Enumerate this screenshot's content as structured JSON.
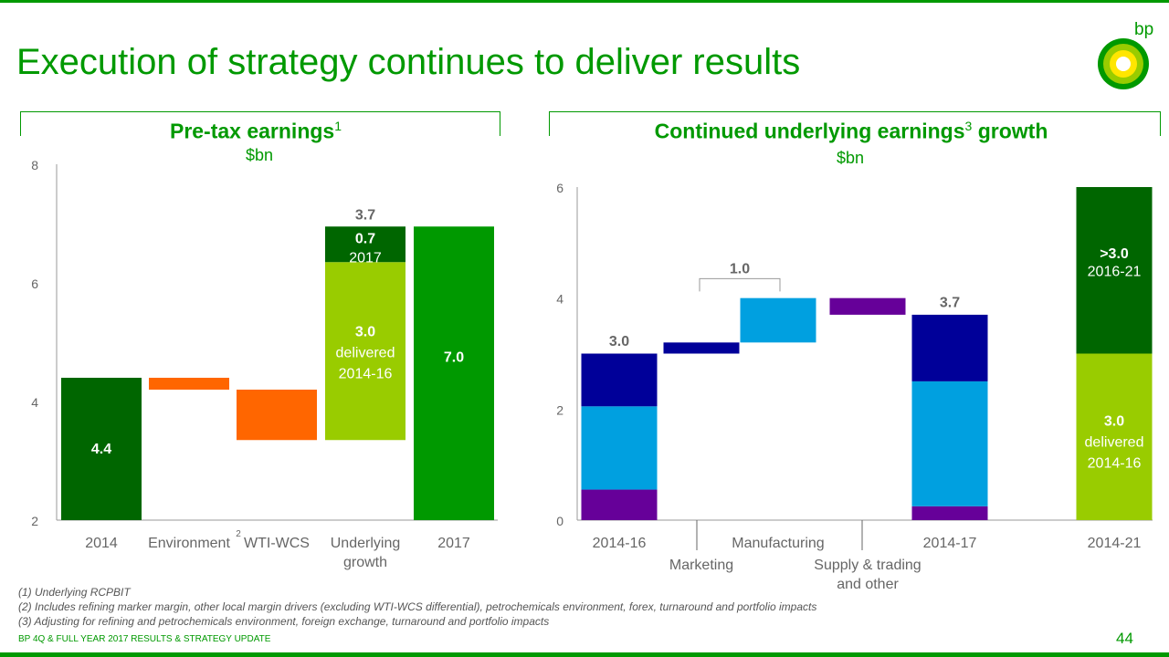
{
  "title": "Execution of strategy continues to deliver results",
  "logo": {
    "text": "bp",
    "icon": "helios-sunflower-icon"
  },
  "colors": {
    "brand_green": "#009900",
    "dark_green": "#006600",
    "light_green": "#99CC00",
    "orange": "#FF6600",
    "dark_blue": "#000099",
    "light_blue": "#00A0E0",
    "purple": "#660099"
  },
  "left_chart": {
    "title": "Pre-tax earnings",
    "title_sup": "1",
    "unit": "$bn"
  },
  "right_chart": {
    "title_a": "Continued underlying earnings",
    "title_sup": "3",
    "title_b": " growth",
    "unit": "$bn"
  },
  "chart_data": [
    {
      "type": "waterfall",
      "title": "Pre-tax earnings",
      "ylabel": "$bn",
      "ylim": [
        2,
        8
      ],
      "yticks": [
        2,
        4,
        6,
        8
      ],
      "categories": [
        "2014",
        "Environment",
        "WTI-WCS",
        "Underlying growth",
        "2017"
      ],
      "category_lines": [
        [
          "2014"
        ],
        [
          "Environment"
        ],
        [
          "WTI-WCS"
        ],
        [
          "Underlying",
          "growth"
        ],
        [
          "2017"
        ]
      ],
      "superscripts": [
        {
          "category": "Environment",
          "text": "2"
        }
      ],
      "segments": [
        {
          "category": "2014",
          "from": 2,
          "to": 4.4,
          "color": "dark_green"
        },
        {
          "category": "Environment",
          "from": 4.4,
          "to": 4.2,
          "color": "orange"
        },
        {
          "category": "WTI-WCS",
          "from": 4.2,
          "to": 3.35,
          "color": "orange"
        },
        {
          "category": "Underlying growth",
          "from": 3.35,
          "to": 6.35,
          "color": "light_green"
        },
        {
          "category": "Underlying growth",
          "from": 6.35,
          "to": 6.95,
          "color": "dark_green"
        },
        {
          "category": "2017",
          "from": 2,
          "to": 6.95,
          "color": "brand_green"
        }
      ],
      "labels": [
        {
          "category": "2014",
          "y": 3.2,
          "lines": [
            "4.4"
          ],
          "color": "white",
          "bold": true
        },
        {
          "category": "Underlying growth",
          "y": 7.15,
          "lines": [
            "3.7"
          ],
          "color": "gray",
          "bold": true
        },
        {
          "category": "Underlying growth",
          "y": 6.75,
          "lines": [
            "0.7"
          ],
          "color": "white",
          "bold": true
        },
        {
          "category": "Underlying growth",
          "y": 6.42,
          "lines": [
            "2017"
          ],
          "color": "white",
          "bold": false
        },
        {
          "category": "Underlying growth",
          "y": 5.18,
          "lines": [
            "3.0",
            "delivered",
            "2014-16"
          ],
          "color": "white",
          "bold": true
        },
        {
          "category": "2017",
          "y": 4.75,
          "lines": [
            "7.0"
          ],
          "color": "white",
          "bold": true
        }
      ]
    },
    {
      "type": "waterfall",
      "title": "Continued underlying earnings growth",
      "ylabel": "$bn",
      "ylim": [
        0,
        6
      ],
      "yticks": [
        0,
        2,
        4,
        6
      ],
      "categories": [
        "2014-16",
        "Marketing",
        "Manufacturing",
        "Supply & trading and other",
        "2014-17",
        "2014-21"
      ],
      "category_lines": [
        [
          "2014-16"
        ],
        [
          "Marketing"
        ],
        [
          "Manufacturing"
        ],
        [
          "Supply & trading",
          "and other"
        ],
        [
          "2014-17"
        ],
        [
          "2014-21"
        ]
      ],
      "segments": [
        {
          "category": "2014-16",
          "from": 0,
          "to": 0.55,
          "color": "purple"
        },
        {
          "category": "2014-16",
          "from": 0.55,
          "to": 2.05,
          "color": "light_blue"
        },
        {
          "category": "2014-16",
          "from": 2.05,
          "to": 3.0,
          "color": "dark_blue"
        },
        {
          "category": "Marketing",
          "from": 3.0,
          "to": 3.2,
          "color": "dark_blue"
        },
        {
          "category": "Manufacturing",
          "from": 3.2,
          "to": 4.0,
          "color": "light_blue"
        },
        {
          "category": "Supply & trading and other",
          "from": 4.0,
          "to": 3.7,
          "color": "purple"
        },
        {
          "category": "2014-17",
          "from": 0,
          "to": 0.25,
          "color": "purple"
        },
        {
          "category": "2014-17",
          "from": 0.25,
          "to": 2.5,
          "color": "light_blue"
        },
        {
          "category": "2014-17",
          "from": 2.5,
          "to": 3.7,
          "color": "dark_blue"
        },
        {
          "category": "2014-21",
          "from": 0,
          "to": 3.0,
          "color": "light_green"
        },
        {
          "category": "2014-21",
          "from": 3.0,
          "to": 6.0,
          "color": "dark_green"
        }
      ],
      "labels": [
        {
          "category": "2014-16",
          "y": 3.22,
          "lines": [
            "3.0"
          ],
          "color": "gray",
          "bold": true
        },
        {
          "category": "2014-17",
          "y": 3.92,
          "lines": [
            "3.7"
          ],
          "color": "gray",
          "bold": true
        },
        {
          "category": "2014-21",
          "y": 4.8,
          "lines": [
            ">3.0"
          ],
          "color": "white",
          "bold": true
        },
        {
          "category": "2014-21",
          "y": 4.48,
          "lines": [
            "2016-21"
          ],
          "color": "white",
          "bold": false
        },
        {
          "category": "2014-21",
          "y": 1.78,
          "lines": [
            "3.0",
            "delivered",
            "2014-16"
          ],
          "color": "white",
          "bold": true
        }
      ],
      "bracket": {
        "from_category": "Marketing",
        "to_category": "Manufacturing",
        "y": 4.35,
        "label": "1.0"
      }
    }
  ],
  "footnotes": [
    "(1)   Underlying RCPBIT",
    "(2)   Includes refining marker margin, other local margin drivers (excluding WTI-WCS differential), petrochemicals environment, forex, turnaround and portfolio impacts",
    "(3)   Adjusting for refining and petrochemicals environment, foreign exchange, turnaround and portfolio impacts"
  ],
  "footer": "BP 4Q & FULL YEAR 2017 RESULTS & STRATEGY UPDATE",
  "page_number": "44"
}
